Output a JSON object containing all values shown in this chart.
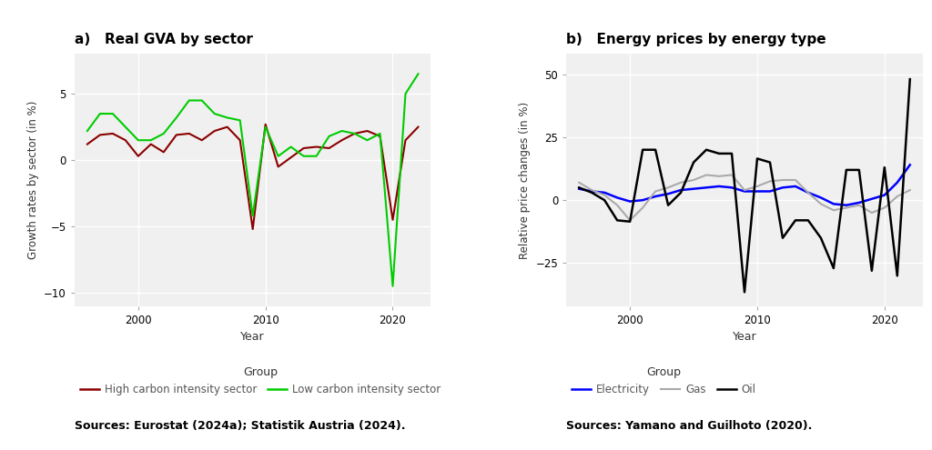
{
  "panel_a": {
    "title": "a)   Real GVA by sector",
    "ylabel": "Growth rates by sector (in %)",
    "xlabel": "Year",
    "ylim": [
      -11,
      8
    ],
    "yticks": [
      -10,
      -5,
      0,
      5
    ],
    "source": "Sources: Eurostat (2024a); Statistik Austria (2024).",
    "high_carbon": {
      "color": "#8B0000",
      "label": "High carbon intensity sector",
      "years": [
        1996,
        1997,
        1998,
        1999,
        2000,
        2001,
        2002,
        2003,
        2004,
        2005,
        2006,
        2007,
        2008,
        2009,
        2010,
        2011,
        2012,
        2013,
        2014,
        2015,
        2016,
        2017,
        2018,
        2019,
        2020,
        2021,
        2022
      ],
      "values": [
        1.2,
        1.9,
        2.0,
        1.5,
        0.3,
        1.2,
        0.6,
        1.9,
        2.0,
        1.5,
        2.2,
        2.5,
        1.5,
        -5.2,
        2.7,
        -0.5,
        0.2,
        0.9,
        1.0,
        0.9,
        1.5,
        2.0,
        2.2,
        1.8,
        -4.5,
        1.5,
        2.5
      ]
    },
    "low_carbon": {
      "color": "#00CC00",
      "label": "Low carbon intensity sector",
      "years": [
        1996,
        1997,
        1998,
        1999,
        2000,
        2001,
        2002,
        2003,
        2004,
        2005,
        2006,
        2007,
        2008,
        2009,
        2010,
        2011,
        2012,
        2013,
        2014,
        2015,
        2016,
        2017,
        2018,
        2019,
        2020,
        2021,
        2022
      ],
      "values": [
        2.2,
        3.5,
        3.5,
        2.5,
        1.5,
        1.5,
        2.0,
        3.2,
        4.5,
        4.5,
        3.5,
        3.2,
        3.0,
        -4.2,
        2.5,
        0.3,
        1.0,
        0.3,
        0.3,
        1.8,
        2.2,
        2.0,
        1.5,
        2.0,
        -9.5,
        5.0,
        6.5
      ]
    }
  },
  "panel_b": {
    "title": "b)   Energy prices by energy type",
    "ylabel": "Relative price changes (in %)",
    "xlabel": "Year",
    "ylim": [
      -42,
      58
    ],
    "yticks": [
      -25,
      0,
      25,
      50
    ],
    "source": "Sources: Yamano and Guilhoto (2020).",
    "electricity": {
      "color": "#0000FF",
      "label": "Electricity",
      "years": [
        1996,
        1997,
        1998,
        1999,
        2000,
        2001,
        2002,
        2003,
        2004,
        2005,
        2006,
        2007,
        2008,
        2009,
        2010,
        2011,
        2012,
        2013,
        2014,
        2015,
        2016,
        2017,
        2018,
        2019,
        2020,
        2021,
        2022
      ],
      "values": [
        4.5,
        3.5,
        3.0,
        1.0,
        -0.5,
        0.0,
        1.5,
        2.5,
        4.0,
        4.5,
        5.0,
        5.5,
        5.0,
        3.5,
        3.5,
        3.5,
        5.0,
        5.5,
        3.0,
        1.0,
        -1.5,
        -2.0,
        -1.0,
        0.5,
        2.0,
        7.0,
        14.0
      ]
    },
    "gas": {
      "color": "#AAAAAA",
      "label": "Gas",
      "years": [
        1996,
        1997,
        1998,
        1999,
        2000,
        2001,
        2002,
        2003,
        2004,
        2005,
        2006,
        2007,
        2008,
        2009,
        2010,
        2011,
        2012,
        2013,
        2014,
        2015,
        2016,
        2017,
        2018,
        2019,
        2020,
        2021,
        2022
      ],
      "values": [
        7.0,
        4.0,
        2.0,
        -2.0,
        -8.0,
        -3.0,
        3.5,
        5.0,
        7.0,
        8.0,
        10.0,
        9.5,
        10.0,
        4.0,
        5.5,
        7.5,
        8.0,
        8.0,
        3.0,
        -1.5,
        -4.0,
        -3.0,
        -2.0,
        -5.0,
        -3.0,
        1.5,
        4.0
      ]
    },
    "oil": {
      "color": "#000000",
      "label": "Oil",
      "years": [
        1996,
        1997,
        1998,
        1999,
        2000,
        2001,
        2002,
        2003,
        2004,
        2005,
        2006,
        2007,
        2008,
        2009,
        2010,
        2011,
        2012,
        2013,
        2014,
        2015,
        2016,
        2017,
        2018,
        2019,
        2020,
        2021,
        2022
      ],
      "values": [
        5.0,
        3.0,
        0.0,
        -8.0,
        -8.5,
        20.0,
        20.0,
        -2.0,
        3.0,
        15.0,
        20.0,
        18.5,
        18.5,
        -36.5,
        16.5,
        15.0,
        -15.0,
        -8.0,
        -8.0,
        -15.0,
        -27.0,
        12.0,
        12.0,
        -28.0,
        13.0,
        -30.0,
        48.0
      ]
    }
  },
  "bg_color": "#FFFFFF",
  "plot_bg_color": "#F0F0F0",
  "grid_color": "#FFFFFF",
  "text_color": "#333333"
}
